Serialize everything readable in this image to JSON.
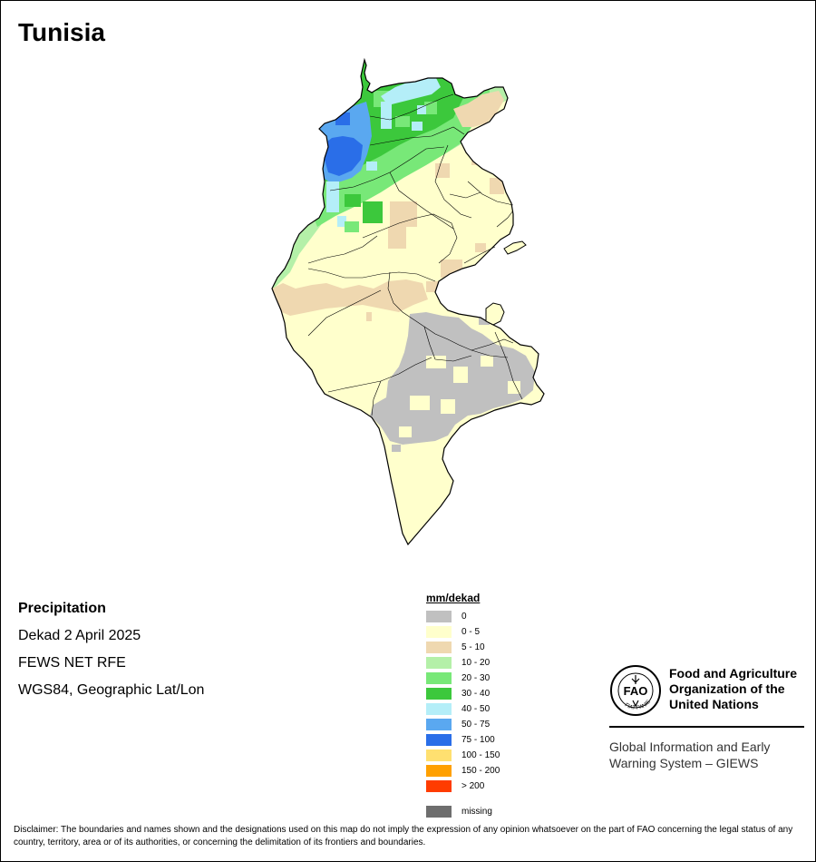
{
  "map_title": "Tunisia",
  "info": {
    "heading": "Precipitation",
    "period": "Dekad 2 April 2025",
    "source": "FEWS NET RFE",
    "projection": "WGS84, Geographic Lat/Lon"
  },
  "legend": {
    "unit": "mm/dekad",
    "classes": [
      {
        "label": "0",
        "color": "#c0c0c0"
      },
      {
        "label": "0 - 5",
        "color": "#ffffcc"
      },
      {
        "label": "5 - 10",
        "color": "#efd8b0"
      },
      {
        "label": "10 - 20",
        "color": "#b4f0a8"
      },
      {
        "label": "20 - 30",
        "color": "#78e878"
      },
      {
        "label": "30 - 40",
        "color": "#3cc83c"
      },
      {
        "label": "40 - 50",
        "color": "#b4eef8"
      },
      {
        "label": "50 - 75",
        "color": "#5aa8f0"
      },
      {
        "label": "75 - 100",
        "color": "#2a6ee8"
      },
      {
        "label": "100 - 150",
        "color": "#ffe070"
      },
      {
        "label": "150 - 200",
        "color": "#ffa000"
      },
      {
        "label": "> 200",
        "color": "#ff3c00"
      }
    ],
    "missing": {
      "label": "missing",
      "color": "#6e6e6e"
    }
  },
  "fao": {
    "org_line1": "Food and Agriculture",
    "org_line2": "Organization of the",
    "org_line3": "United Nations",
    "giews_line1": "Global Information and Early",
    "giews_line2": "Warning System – GIEWS",
    "logo_letters": "FAO",
    "logo_motto": "FIAT PANIS"
  },
  "disclaimer": "Disclaimer: The boundaries and names shown and the designations used on this map do not imply the expression of any opinion whatsoever on the part of FAO concerning the legal status of any country, territory, area or of its authorities, or concerning the delimitation of its frontiers and boundaries."
}
